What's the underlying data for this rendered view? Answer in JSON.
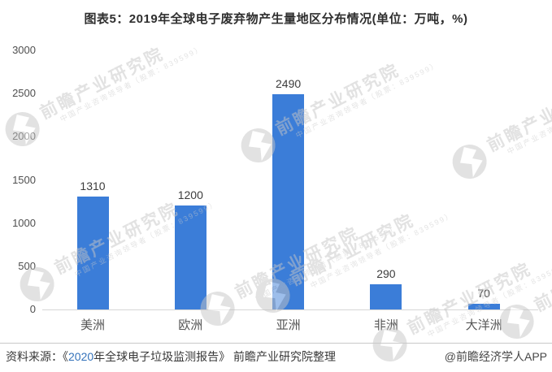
{
  "title": "图表5：2019年全球电子废弃物产生量地区分布情况(单位：万吨，%)",
  "watermark": {
    "brand": "前瞻产业研究院",
    "tagline": "中国产业咨询领导者（股票：839599）"
  },
  "footer": {
    "source_prefix": "资料来源：《",
    "source_year": "2020",
    "source_rest": "年全球电子垃圾监测报告》 前瞻产业研究院整理",
    "credit": "@前瞻经济学人APP"
  },
  "colors": {
    "bar": "#3b7dd8",
    "axis_line": "#d6d6d6",
    "title_text": "#2f2f2f",
    "tick_text": "#4f4f4f",
    "value_text": "#3c3c3c",
    "category_text": "#555555",
    "watermark": "#c6c6c6",
    "source_year_link": "#3472ba"
  },
  "chart_data": {
    "type": "bar",
    "title": "图表5：2019年全球电子废弃物产生量地区分布情况",
    "unit": "万吨，%",
    "categories": [
      "美洲",
      "欧洲",
      "亚洲",
      "非洲",
      "大洋洲"
    ],
    "values": [
      1310,
      1200,
      2490,
      290,
      70
    ],
    "ylim": [
      0,
      3000
    ],
    "yticks": [
      0,
      500,
      1000,
      1500,
      2000,
      2500,
      3000
    ],
    "grid": false,
    "legend": null,
    "xlabel": "",
    "ylabel": ""
  }
}
